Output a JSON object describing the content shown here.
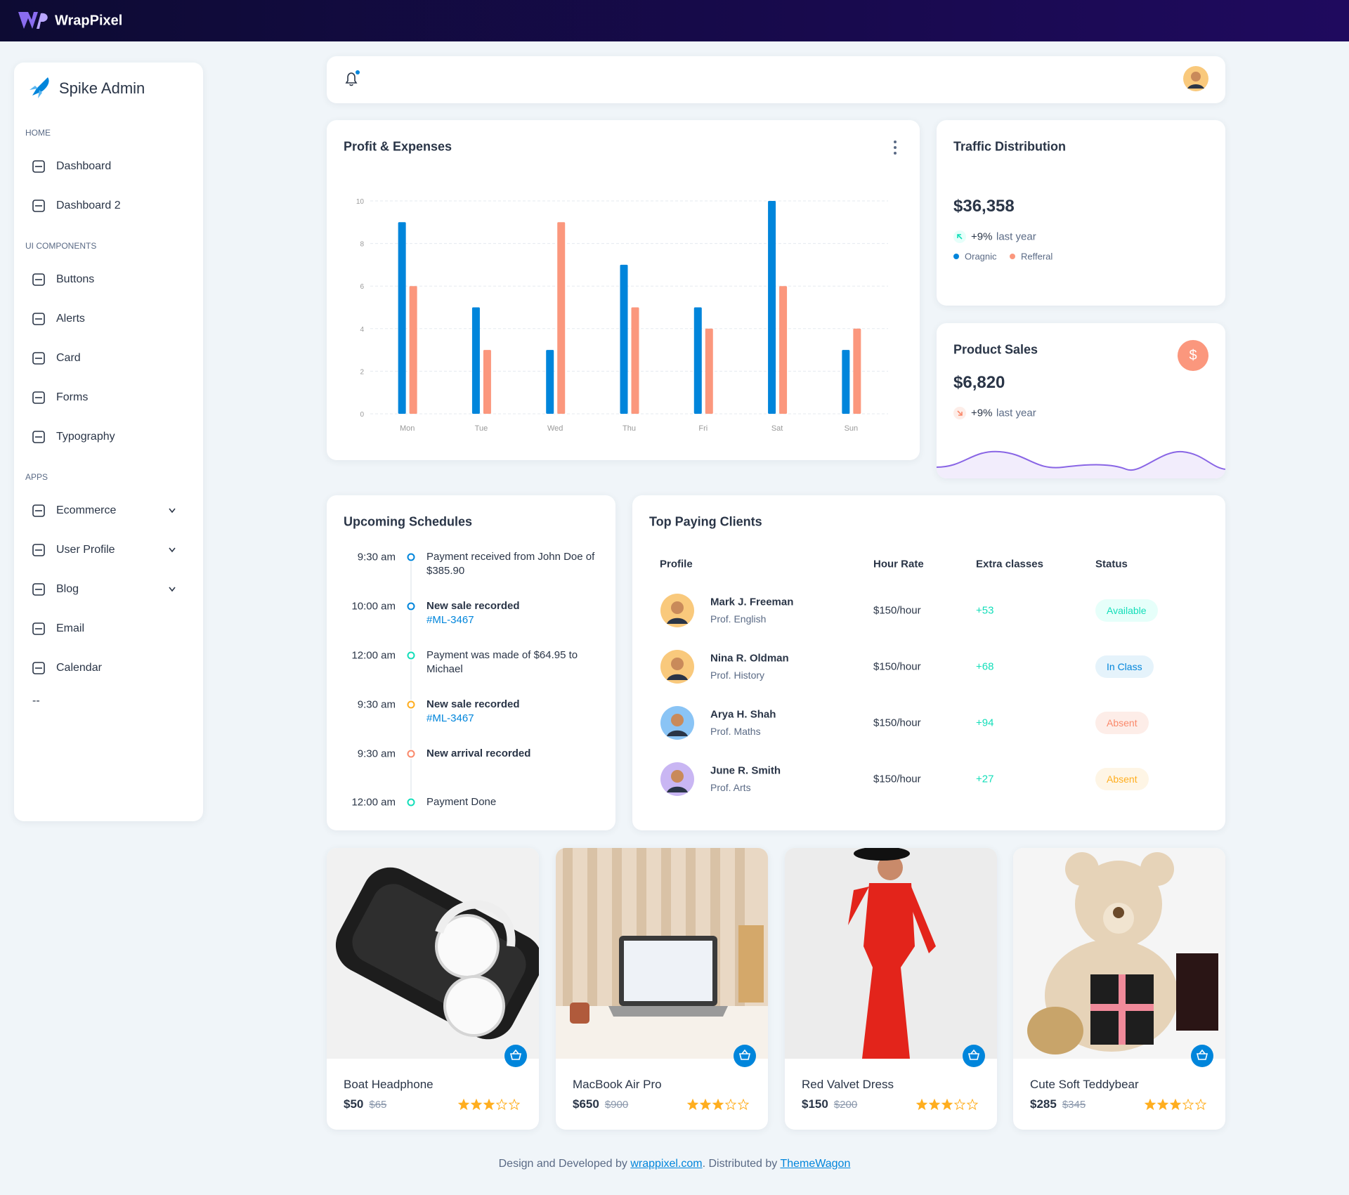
{
  "brand": "WrapPixel",
  "sidebar": {
    "title": "Spike Admin",
    "sections": [
      {
        "heading": "HOME",
        "items": [
          {
            "label": "Dashboard"
          },
          {
            "label": "Dashboard 2"
          }
        ]
      },
      {
        "heading": "UI COMPONENTS",
        "items": [
          {
            "label": "Buttons"
          },
          {
            "label": "Alerts"
          },
          {
            "label": "Card"
          },
          {
            "label": "Forms"
          },
          {
            "label": "Typography"
          }
        ]
      },
      {
        "heading": "APPS",
        "items": [
          {
            "label": "Ecommerce",
            "has_submenu": true
          },
          {
            "label": "User Profile",
            "has_submenu": true
          },
          {
            "label": "Blog",
            "has_submenu": true
          },
          {
            "label": "Email"
          },
          {
            "label": "Calendar"
          }
        ]
      }
    ],
    "end_mark": "--"
  },
  "chart_data": {
    "type": "bar",
    "title": "Profit & Expenses",
    "categories": [
      "Mon",
      "Tue",
      "Wed",
      "Thu",
      "Fri",
      "Sat",
      "Sun"
    ],
    "series": [
      {
        "color": "#0085db",
        "values": [
          9,
          5,
          3,
          7,
          5,
          10,
          3
        ]
      },
      {
        "color": "#fb977d",
        "values": [
          6,
          3,
          9,
          5,
          4,
          6,
          4
        ]
      }
    ],
    "ylim": [
      0,
      10
    ],
    "yticks": [
      0,
      2,
      4,
      6,
      8,
      10
    ],
    "grid": true
  },
  "traffic": {
    "title": "Traffic Distribution",
    "amount": "$36,358",
    "change": "+9%",
    "change_note": "last year",
    "legend": [
      {
        "label": "Oragnic",
        "color": "#0085db"
      },
      {
        "label": "Refferal",
        "color": "#fb977d"
      }
    ]
  },
  "product_sales": {
    "title": "Product Sales",
    "icon": "$",
    "amount": "$6,820",
    "change": "+9%",
    "change_note": "last year"
  },
  "schedules": {
    "title": "Upcoming Schedules",
    "items": [
      {
        "time": "9:30 am",
        "text": "Payment received from John Doe of $385.90",
        "color": "#0085db"
      },
      {
        "time": "10:00 am",
        "text": "New sale recorded",
        "link": "#ML-3467",
        "bold": true,
        "color": "#0085db"
      },
      {
        "time": "12:00 am",
        "text": "Payment was made of $64.95 to Michael",
        "color": "#13deb9"
      },
      {
        "time": "9:30 am",
        "text": "New sale recorded",
        "link": "#ML-3467",
        "bold": true,
        "color": "#ffae1f"
      },
      {
        "time": "9:30 am",
        "text": "New arrival recorded",
        "bold": true,
        "color": "#fa896b"
      },
      {
        "time": "12:00 am",
        "text": "Payment Done",
        "color": "#13deb9"
      }
    ]
  },
  "clients": {
    "title": "Top Paying Clients",
    "columns": [
      "Profile",
      "Hour Rate",
      "Extra classes",
      "Status"
    ],
    "rows": [
      {
        "name": "Mark J. Freeman",
        "role": "Prof. English",
        "rate": "$150/hour",
        "extra": "+53",
        "status": "Available",
        "status_color": "#13deb9",
        "status_bg": "#e6fffa"
      },
      {
        "name": "Nina R. Oldman",
        "role": "Prof. History",
        "rate": "$150/hour",
        "extra": "+68",
        "status": "In Class",
        "status_color": "#0085db",
        "status_bg": "#e5f3fb"
      },
      {
        "name": "Arya H. Shah",
        "role": "Prof. Maths",
        "rate": "$150/hour",
        "extra": "+94",
        "status": "Absent",
        "status_color": "#fa896b",
        "status_bg": "#fdede8"
      },
      {
        "name": "June R. Smith",
        "role": "Prof. Arts",
        "rate": "$150/hour",
        "extra": "+27",
        "status": "Absent",
        "status_color": "#ffae1f",
        "status_bg": "#fef5e5"
      }
    ]
  },
  "products": {
    "rating_max": 5,
    "items": [
      {
        "name": "Boat Headphone",
        "price": "$50",
        "old_price": "$65",
        "rating": 3
      },
      {
        "name": "MacBook Air Pro",
        "price": "$650",
        "old_price": "$900",
        "rating": 3
      },
      {
        "name": "Red Valvet Dress",
        "price": "$150",
        "old_price": "$200",
        "rating": 3
      },
      {
        "name": "Cute Soft Teddybear",
        "price": "$285",
        "old_price": "$345",
        "rating": 3
      }
    ]
  },
  "footer": {
    "prefix": "Design and Developed by",
    "link1": "wrappixel.com",
    "middle": ". Distributed by",
    "link2": "ThemeWagon"
  }
}
